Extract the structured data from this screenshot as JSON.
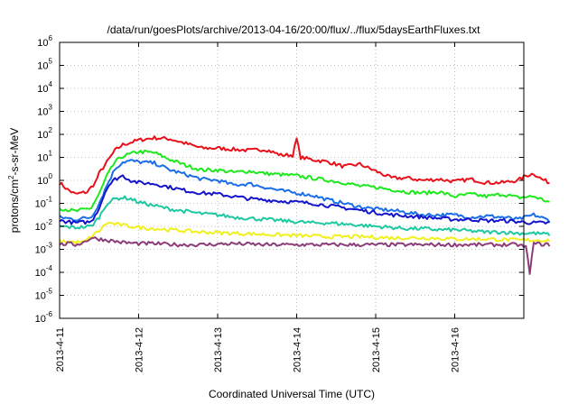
{
  "chart_data": {
    "type": "line",
    "title": "/data/run/goesPlots/archive/2013-04-16/20:00/flux/../flux/5daysEarthFluxes.txt",
    "xlabel": "Coordinated Universal Time (UTC)",
    "ylabel": "protons/cm²-s-sr-MeV",
    "ylabel_parts": [
      "protons/cm",
      "2",
      "-s-sr-MeV"
    ],
    "y_scale": "log",
    "ylim_exp": [
      -6,
      6
    ],
    "y_ticks": [
      {
        "base": "10",
        "exp": "6"
      },
      {
        "base": "10",
        "exp": "5"
      },
      {
        "base": "10",
        "exp": "4"
      },
      {
        "base": "10",
        "exp": "3"
      },
      {
        "base": "10",
        "exp": "2"
      },
      {
        "base": "10",
        "exp": "1"
      },
      {
        "base": "10",
        "exp": "0"
      },
      {
        "base": "10",
        "exp": "-1"
      },
      {
        "base": "10",
        "exp": "-2"
      },
      {
        "base": "10",
        "exp": "-3"
      },
      {
        "base": "10",
        "exp": "-4"
      },
      {
        "base": "10",
        "exp": "-5"
      },
      {
        "base": "10",
        "exp": "-6"
      }
    ],
    "x_ticks": [
      "2013-4-11",
      "2013-4-12",
      "2013-4-13",
      "2013-4-14",
      "2013-4-15",
      "2013-4-16"
    ],
    "x_range_days": [
      0,
      6.2
    ],
    "grid": true,
    "series": [
      {
        "color": "#e8101a",
        "points": [
          [
            0,
            -0.1
          ],
          [
            0.1,
            -0.4
          ],
          [
            0.2,
            -0.6
          ],
          [
            0.35,
            -0.5
          ],
          [
            0.45,
            -0.1
          ],
          [
            0.5,
            0.3
          ],
          [
            0.6,
            0.8
          ],
          [
            0.7,
            1.3
          ],
          [
            0.8,
            1.55
          ],
          [
            0.9,
            1.65
          ],
          [
            1.0,
            1.75
          ],
          [
            1.2,
            1.85
          ],
          [
            1.4,
            1.8
          ],
          [
            1.6,
            1.6
          ],
          [
            1.8,
            1.4
          ],
          [
            2.0,
            1.4
          ],
          [
            2.2,
            1.35
          ],
          [
            2.4,
            1.3
          ],
          [
            2.6,
            1.35
          ],
          [
            2.8,
            1.1
          ],
          [
            2.95,
            1.1
          ],
          [
            3.0,
            1.8
          ],
          [
            3.05,
            1.0
          ],
          [
            3.2,
            0.9
          ],
          [
            3.4,
            0.8
          ],
          [
            3.6,
            0.6
          ],
          [
            3.8,
            0.7
          ],
          [
            4.0,
            0.4
          ],
          [
            4.2,
            0.1
          ],
          [
            4.4,
            0.1
          ],
          [
            4.6,
            0.0
          ],
          [
            4.8,
            0.05
          ],
          [
            5.0,
            -0.05
          ],
          [
            5.2,
            0.05
          ],
          [
            5.4,
            -0.1
          ],
          [
            5.6,
            -0.1
          ],
          [
            5.8,
            0.0
          ],
          [
            5.9,
            0.2
          ],
          [
            6.0,
            0.3
          ],
          [
            6.1,
            0.05
          ],
          [
            6.2,
            -0.1
          ]
        ]
      },
      {
        "color": "#1ee81e",
        "points": [
          [
            0,
            -1.2
          ],
          [
            0.2,
            -1.35
          ],
          [
            0.4,
            -1.2
          ],
          [
            0.5,
            -0.6
          ],
          [
            0.6,
            0.2
          ],
          [
            0.7,
            0.8
          ],
          [
            0.8,
            1.05
          ],
          [
            0.9,
            1.15
          ],
          [
            1.0,
            1.25
          ],
          [
            1.2,
            1.2
          ],
          [
            1.4,
            0.9
          ],
          [
            1.6,
            0.65
          ],
          [
            1.8,
            0.45
          ],
          [
            2.0,
            0.45
          ],
          [
            2.2,
            0.35
          ],
          [
            2.4,
            0.4
          ],
          [
            2.6,
            0.3
          ],
          [
            2.8,
            0.25
          ],
          [
            3.0,
            0.2
          ],
          [
            3.2,
            0.1
          ],
          [
            3.4,
            0.0
          ],
          [
            3.6,
            -0.1
          ],
          [
            3.8,
            -0.25
          ],
          [
            4.0,
            -0.3
          ],
          [
            4.2,
            -0.4
          ],
          [
            4.4,
            -0.5
          ],
          [
            4.6,
            -0.55
          ],
          [
            4.8,
            -0.5
          ],
          [
            5.0,
            -0.7
          ],
          [
            5.2,
            -0.6
          ],
          [
            5.4,
            -0.7
          ],
          [
            5.6,
            -0.6
          ],
          [
            5.8,
            -0.75
          ],
          [
            6.0,
            -0.7
          ],
          [
            6.2,
            -0.95
          ]
        ]
      },
      {
        "color": "#1a6ee8",
        "points": [
          [
            0,
            -1.6
          ],
          [
            0.2,
            -1.7
          ],
          [
            0.4,
            -1.6
          ],
          [
            0.5,
            -1.0
          ],
          [
            0.6,
            -0.2
          ],
          [
            0.7,
            0.5
          ],
          [
            0.8,
            0.8
          ],
          [
            0.9,
            0.85
          ],
          [
            1.0,
            0.8
          ],
          [
            1.2,
            0.75
          ],
          [
            1.4,
            0.45
          ],
          [
            1.6,
            0.25
          ],
          [
            1.8,
            0.05
          ],
          [
            2.0,
            0.0
          ],
          [
            2.2,
            -0.2
          ],
          [
            2.4,
            -0.15
          ],
          [
            2.6,
            -0.3
          ],
          [
            2.8,
            -0.45
          ],
          [
            3.0,
            -0.55
          ],
          [
            3.2,
            -0.65
          ],
          [
            3.4,
            -0.85
          ],
          [
            3.6,
            -1.0
          ],
          [
            3.8,
            -1.15
          ],
          [
            4.0,
            -1.25
          ],
          [
            4.2,
            -1.3
          ],
          [
            4.4,
            -1.4
          ],
          [
            4.6,
            -1.5
          ],
          [
            4.8,
            -1.5
          ],
          [
            5.0,
            -1.5
          ],
          [
            5.2,
            -1.6
          ],
          [
            5.4,
            -1.55
          ],
          [
            5.6,
            -1.6
          ],
          [
            5.8,
            -1.7
          ],
          [
            6.0,
            -1.5
          ],
          [
            6.2,
            -1.75
          ]
        ]
      },
      {
        "color": "#1414cc",
        "points": [
          [
            0,
            -1.75
          ],
          [
            0.2,
            -1.85
          ],
          [
            0.4,
            -1.8
          ],
          [
            0.5,
            -1.2
          ],
          [
            0.6,
            -0.3
          ],
          [
            0.7,
            0.05
          ],
          [
            0.8,
            0.2
          ],
          [
            0.9,
            0.0
          ],
          [
            1.0,
            -0.1
          ],
          [
            1.2,
            -0.15
          ],
          [
            1.4,
            -0.3
          ],
          [
            1.6,
            -0.45
          ],
          [
            1.8,
            -0.55
          ],
          [
            2.0,
            -0.6
          ],
          [
            2.2,
            -0.7
          ],
          [
            2.4,
            -0.8
          ],
          [
            2.6,
            -0.85
          ],
          [
            2.8,
            -0.9
          ],
          [
            3.0,
            -0.95
          ],
          [
            3.2,
            -1.0
          ],
          [
            3.4,
            -1.1
          ],
          [
            3.6,
            -1.2
          ],
          [
            3.8,
            -1.3
          ],
          [
            4.0,
            -1.4
          ],
          [
            4.2,
            -1.5
          ],
          [
            4.4,
            -1.55
          ],
          [
            4.6,
            -1.6
          ],
          [
            4.8,
            -1.65
          ],
          [
            5.0,
            -1.7
          ],
          [
            5.2,
            -1.7
          ],
          [
            5.4,
            -1.75
          ],
          [
            5.6,
            -1.75
          ],
          [
            5.8,
            -1.8
          ],
          [
            6.0,
            -1.85
          ],
          [
            6.2,
            -1.85
          ]
        ]
      },
      {
        "color": "#1ec8a0",
        "points": [
          [
            0,
            -2.0
          ],
          [
            0.2,
            -2.05
          ],
          [
            0.4,
            -2.0
          ],
          [
            0.5,
            -1.6
          ],
          [
            0.6,
            -1.0
          ],
          [
            0.7,
            -0.8
          ],
          [
            0.8,
            -0.75
          ],
          [
            0.9,
            -0.8
          ],
          [
            1.0,
            -0.95
          ],
          [
            1.2,
            -1.1
          ],
          [
            1.4,
            -1.25
          ],
          [
            1.6,
            -1.35
          ],
          [
            1.8,
            -1.45
          ],
          [
            2.0,
            -1.5
          ],
          [
            2.2,
            -1.6
          ],
          [
            2.4,
            -1.65
          ],
          [
            2.6,
            -1.7
          ],
          [
            2.8,
            -1.75
          ],
          [
            3.0,
            -1.8
          ],
          [
            3.2,
            -1.85
          ],
          [
            3.4,
            -1.85
          ],
          [
            3.6,
            -1.9
          ],
          [
            3.8,
            -1.95
          ],
          [
            4.0,
            -2.0
          ],
          [
            4.2,
            -2.05
          ],
          [
            4.4,
            -2.1
          ],
          [
            4.6,
            -2.1
          ],
          [
            4.8,
            -2.15
          ],
          [
            5.0,
            -2.15
          ],
          [
            5.2,
            -2.2
          ],
          [
            5.4,
            -2.25
          ],
          [
            5.6,
            -2.25
          ],
          [
            5.8,
            -2.3
          ],
          [
            6.0,
            -2.3
          ],
          [
            6.2,
            -2.35
          ]
        ]
      },
      {
        "color": "#f0f01e",
        "points": [
          [
            0,
            -2.65
          ],
          [
            0.3,
            -2.7
          ],
          [
            0.5,
            -2.2
          ],
          [
            0.6,
            -1.85
          ],
          [
            0.8,
            -1.95
          ],
          [
            1.0,
            -2.05
          ],
          [
            1.4,
            -2.15
          ],
          [
            1.8,
            -2.25
          ],
          [
            2.2,
            -2.3
          ],
          [
            2.6,
            -2.35
          ],
          [
            3.0,
            -2.4
          ],
          [
            3.4,
            -2.45
          ],
          [
            3.8,
            -2.45
          ],
          [
            4.2,
            -2.5
          ],
          [
            4.6,
            -2.5
          ],
          [
            5.0,
            -2.55
          ],
          [
            5.4,
            -2.55
          ],
          [
            5.8,
            -2.6
          ],
          [
            6.2,
            -2.6
          ]
        ]
      },
      {
        "color": "#8c3c78",
        "points": [
          [
            0,
            -2.8
          ],
          [
            0.1,
            -2.75
          ],
          [
            0.2,
            -2.8
          ],
          [
            0.3,
            -2.7
          ],
          [
            0.4,
            -2.5
          ],
          [
            0.5,
            -2.55
          ],
          [
            0.6,
            -2.6
          ],
          [
            0.7,
            -2.65
          ],
          [
            0.8,
            -2.7
          ],
          [
            1.0,
            -2.75
          ],
          [
            1.2,
            -2.75
          ],
          [
            1.5,
            -2.8
          ],
          [
            1.8,
            -2.8
          ],
          [
            2.2,
            -2.75
          ],
          [
            2.6,
            -2.8
          ],
          [
            3.0,
            -2.8
          ],
          [
            3.4,
            -2.8
          ],
          [
            3.8,
            -2.8
          ],
          [
            4.2,
            -2.8
          ],
          [
            4.6,
            -2.8
          ],
          [
            5.0,
            -2.8
          ],
          [
            5.4,
            -2.8
          ],
          [
            5.8,
            -2.8
          ],
          [
            5.9,
            -2.9
          ],
          [
            5.95,
            -4.0
          ],
          [
            6.0,
            -2.75
          ],
          [
            6.2,
            -2.8
          ]
        ]
      }
    ]
  }
}
